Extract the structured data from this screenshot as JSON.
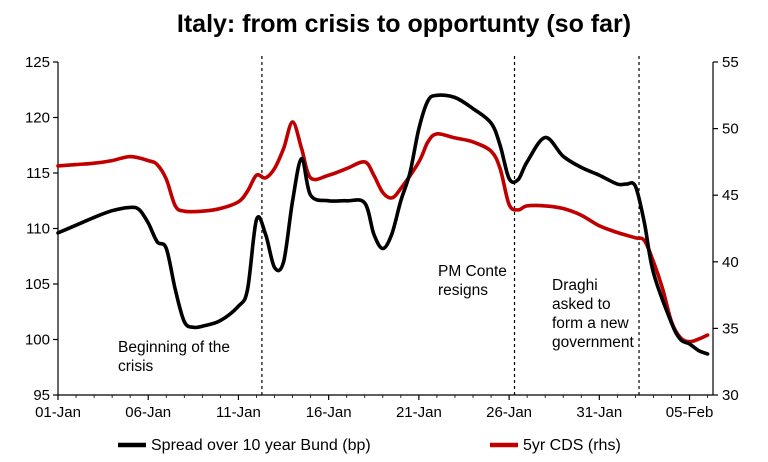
{
  "chart_data": {
    "type": "line",
    "title": "Italy: from crisis to opportunty (so far)",
    "x_tick_labels": [
      "01-Jan",
      "06-Jan",
      "11-Jan",
      "16-Jan",
      "21-Jan",
      "26-Jan",
      "31-Jan",
      "05-Feb"
    ],
    "y_left": {
      "min": 95,
      "max": 125,
      "ticks": [
        95,
        100,
        105,
        110,
        115,
        120,
        125
      ]
    },
    "y_right": {
      "min": 30,
      "max": 55,
      "ticks": [
        30,
        35,
        40,
        45,
        50,
        55
      ]
    },
    "series": [
      {
        "name": "Spread over 10 year Bund (bp)",
        "axis": "left",
        "color": "#000000",
        "points": [
          [
            1,
            109.6
          ],
          [
            2,
            110.3
          ],
          [
            3,
            111.0
          ],
          [
            4,
            111.6
          ],
          [
            5,
            111.9
          ],
          [
            5.5,
            111.7
          ],
          [
            6,
            110.5
          ],
          [
            6.5,
            108.8
          ],
          [
            7,
            108.2
          ],
          [
            7.5,
            104.5
          ],
          [
            8,
            101.6
          ],
          [
            8.5,
            101.1
          ],
          [
            9,
            101.2
          ],
          [
            10,
            101.7
          ],
          [
            11,
            103.0
          ],
          [
            11.5,
            104.5
          ],
          [
            12,
            110.8
          ],
          [
            12.5,
            109.5
          ],
          [
            13,
            106.5
          ],
          [
            13.5,
            107.0
          ],
          [
            14,
            112.5
          ],
          [
            14.5,
            116.3
          ],
          [
            15,
            113.0
          ],
          [
            16,
            112.5
          ],
          [
            17,
            112.5
          ],
          [
            18,
            112.3
          ],
          [
            18.5,
            109.5
          ],
          [
            19,
            108.2
          ],
          [
            19.5,
            109.5
          ],
          [
            20,
            112.5
          ],
          [
            20.5,
            115.0
          ],
          [
            21,
            119.0
          ],
          [
            21.5,
            121.5
          ],
          [
            22,
            122.0
          ],
          [
            23,
            121.8
          ],
          [
            24,
            120.8
          ],
          [
            25,
            119.5
          ],
          [
            25.5,
            117.5
          ],
          [
            26,
            114.5
          ],
          [
            26.5,
            114.4
          ],
          [
            27,
            116.0
          ],
          [
            28,
            118.2
          ],
          [
            29,
            116.5
          ],
          [
            30,
            115.5
          ],
          [
            31,
            114.8
          ],
          [
            32,
            114.0
          ],
          [
            32.5,
            114.0
          ],
          [
            33,
            113.8
          ],
          [
            33.5,
            110.5
          ],
          [
            34,
            106.0
          ],
          [
            35,
            101.5
          ],
          [
            35.5,
            100.0
          ],
          [
            36,
            99.6
          ],
          [
            36.5,
            99.0
          ],
          [
            37,
            98.7
          ]
        ]
      },
      {
        "name": "5yr CDS (rhs)",
        "axis": "right",
        "color": "#c00000",
        "points": [
          [
            1,
            47.2
          ],
          [
            2,
            47.3
          ],
          [
            3,
            47.4
          ],
          [
            4,
            47.6
          ],
          [
            5,
            47.9
          ],
          [
            6,
            47.6
          ],
          [
            6.5,
            47.3
          ],
          [
            7,
            46.2
          ],
          [
            7.5,
            44.2
          ],
          [
            8,
            43.8
          ],
          [
            9,
            43.8
          ],
          [
            10,
            44.0
          ],
          [
            11,
            44.5
          ],
          [
            11.5,
            45.3
          ],
          [
            12,
            46.5
          ],
          [
            12.5,
            46.3
          ],
          [
            13,
            47.0
          ],
          [
            13.5,
            48.5
          ],
          [
            14,
            50.5
          ],
          [
            14.5,
            48.5
          ],
          [
            15,
            46.3
          ],
          [
            16,
            46.5
          ],
          [
            17,
            47.0
          ],
          [
            18,
            47.5
          ],
          [
            18.5,
            46.5
          ],
          [
            19,
            45.2
          ],
          [
            19.5,
            44.8
          ],
          [
            20,
            45.5
          ],
          [
            21,
            47.5
          ],
          [
            21.5,
            49.0
          ],
          [
            22,
            49.6
          ],
          [
            23,
            49.3
          ],
          [
            24,
            49.0
          ],
          [
            25,
            48.3
          ],
          [
            25.5,
            47.0
          ],
          [
            26,
            44.3
          ],
          [
            26.5,
            43.9
          ],
          [
            27,
            44.2
          ],
          [
            28,
            44.2
          ],
          [
            29,
            44.0
          ],
          [
            30,
            43.5
          ],
          [
            31,
            42.7
          ],
          [
            32,
            42.2
          ],
          [
            33,
            41.8
          ],
          [
            33.5,
            41.6
          ],
          [
            34,
            40.0
          ],
          [
            34.5,
            38.0
          ],
          [
            35,
            35.5
          ],
          [
            35.5,
            34.3
          ],
          [
            36,
            34.0
          ],
          [
            36.5,
            34.2
          ],
          [
            37,
            34.5
          ]
        ]
      }
    ],
    "event_lines": [
      12.3,
      26.3,
      33.2
    ],
    "annotations": [
      {
        "lines": [
          "Beginning of the",
          "crisis"
        ]
      },
      {
        "lines": [
          "PM Conte",
          "resigns"
        ]
      },
      {
        "lines": [
          "Draghi",
          "asked to",
          "form a new",
          "government"
        ]
      }
    ],
    "legend": [
      {
        "label": "Spread over 10 year Bund (bp)",
        "color": "#000000"
      },
      {
        "label": "5yr CDS (rhs)",
        "color": "#c00000"
      }
    ]
  }
}
